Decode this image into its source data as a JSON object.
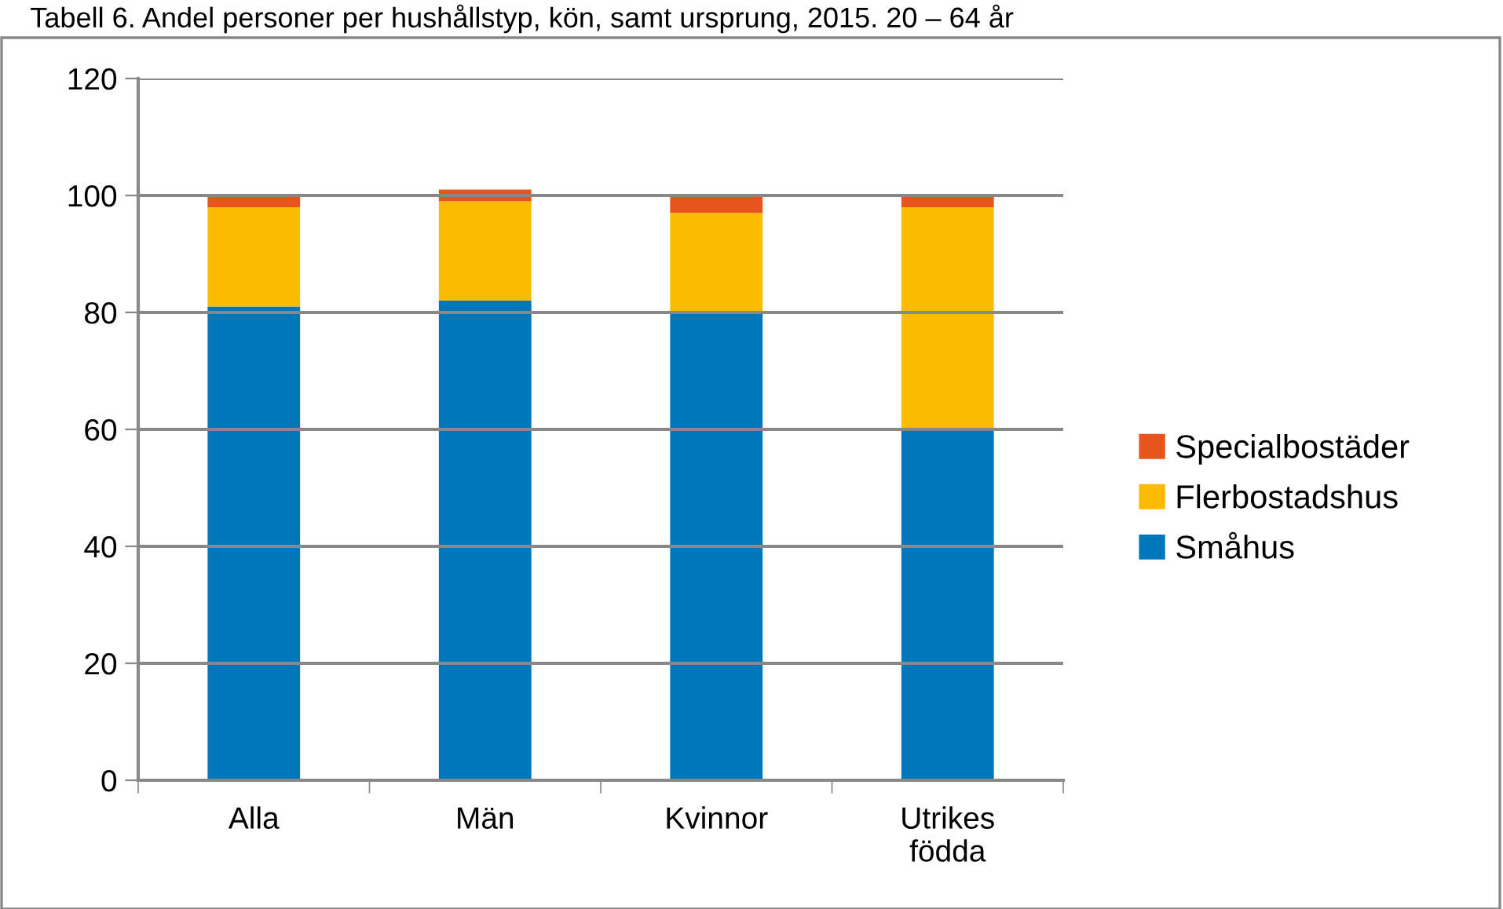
{
  "chart_data": {
    "type": "bar",
    "stacked": true,
    "title": "Tabell 6. Andel personer per hushållstyp, kön, samt ursprung, 2015. 20 – 64 år",
    "categories": [
      "Alla",
      "Män",
      "Kvinnor",
      "Utrikes\nfödda"
    ],
    "series": [
      {
        "name": "Småhus",
        "color": "#0077bb",
        "values": [
          81,
          82,
          80,
          60
        ]
      },
      {
        "name": "Flerbostadshus",
        "color": "#fbbb00",
        "values": [
          17,
          17,
          17,
          38
        ]
      },
      {
        "name": "Specialbostäder",
        "color": "#e8541e",
        "values": [
          2,
          2,
          3,
          2
        ]
      }
    ],
    "ylim": [
      0,
      120
    ],
    "yticks": [
      0,
      20,
      40,
      60,
      80,
      100,
      120
    ],
    "grid": "y",
    "legend": "right"
  }
}
